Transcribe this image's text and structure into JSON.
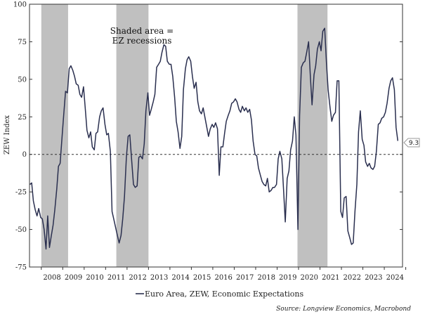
{
  "chart_data": {
    "type": "line",
    "ylabel": "ZEW Index",
    "ylim": [
      -75,
      100
    ],
    "yticks": [
      100,
      75,
      50,
      25,
      0,
      -25,
      -50,
      -75
    ],
    "xlim": [
      2007.45,
      2024.85
    ],
    "xticks": [
      {
        "label": "2008",
        "x": 2008.0
      },
      {
        "label": "2009",
        "x": 2009.0
      },
      {
        "label": "2010",
        "x": 2010.0
      },
      {
        "label": "2011",
        "x": 2011.0
      },
      {
        "label": "2012",
        "x": 2012.0
      },
      {
        "label": "2013",
        "x": 2013.0
      },
      {
        "label": "2014",
        "x": 2014.0
      },
      {
        "label": "2015",
        "x": 2015.0
      },
      {
        "label": "2016",
        "x": 2016.0
      },
      {
        "label": "2017",
        "x": 2017.0
      },
      {
        "label": "2018",
        "x": 2018.0
      },
      {
        "label": "2019",
        "x": 2019.0
      },
      {
        "label": "2020",
        "x": 2020.0
      },
      {
        "label": "2021",
        "x": 2021.0
      },
      {
        "label": "2022",
        "x": 2022.0
      },
      {
        "label": "2023",
        "x": 2023.0
      },
      {
        "label": "2024",
        "x": 2024.0
      }
    ],
    "recessions": [
      {
        "start": 2008.0,
        "end": 2009.25
      },
      {
        "start": 2011.5,
        "end": 2013.0
      },
      {
        "start": 2019.95,
        "end": 2021.35
      }
    ],
    "annotation": "Shaded area =\nEZ recessions",
    "end_label": "9.3",
    "series": [
      {
        "name": "Euro Area, ZEW, Economic Expectations",
        "color": "#2a2f4f",
        "x": [
          2007.47,
          2007.55,
          2007.63,
          2007.72,
          2007.8,
          2007.88,
          2007.97,
          2008.05,
          2008.13,
          2008.22,
          2008.3,
          2008.38,
          2008.47,
          2008.55,
          2008.63,
          2008.72,
          2008.8,
          2008.88,
          2008.97,
          2009.05,
          2009.13,
          2009.22,
          2009.3,
          2009.38,
          2009.47,
          2009.55,
          2009.63,
          2009.72,
          2009.8,
          2009.88,
          2009.97,
          2010.05,
          2010.13,
          2010.22,
          2010.3,
          2010.38,
          2010.47,
          2010.55,
          2010.63,
          2010.72,
          2010.8,
          2010.88,
          2010.97,
          2011.05,
          2011.13,
          2011.22,
          2011.3,
          2011.38,
          2011.47,
          2011.55,
          2011.63,
          2011.72,
          2011.8,
          2011.88,
          2011.97,
          2012.05,
          2012.13,
          2012.22,
          2012.3,
          2012.38,
          2012.47,
          2012.55,
          2012.63,
          2012.72,
          2012.8,
          2012.88,
          2012.97,
          2013.05,
          2013.13,
          2013.22,
          2013.3,
          2013.38,
          2013.47,
          2013.55,
          2013.63,
          2013.72,
          2013.8,
          2013.88,
          2013.97,
          2014.05,
          2014.13,
          2014.22,
          2014.3,
          2014.38,
          2014.47,
          2014.55,
          2014.63,
          2014.72,
          2014.8,
          2014.88,
          2014.97,
          2015.05,
          2015.13,
          2015.22,
          2015.3,
          2015.38,
          2015.47,
          2015.55,
          2015.63,
          2015.72,
          2015.8,
          2015.88,
          2015.97,
          2016.05,
          2016.13,
          2016.22,
          2016.3,
          2016.38,
          2016.47,
          2016.55,
          2016.63,
          2016.72,
          2016.8,
          2016.88,
          2016.97,
          2017.05,
          2017.13,
          2017.22,
          2017.3,
          2017.38,
          2017.47,
          2017.55,
          2017.63,
          2017.72,
          2017.8,
          2017.88,
          2017.97,
          2018.05,
          2018.13,
          2018.22,
          2018.3,
          2018.38,
          2018.47,
          2018.55,
          2018.63,
          2018.72,
          2018.8,
          2018.88,
          2018.97,
          2019.05,
          2019.13,
          2019.22,
          2019.3,
          2019.38,
          2019.47,
          2019.55,
          2019.63,
          2019.72,
          2019.8,
          2019.88,
          2019.97,
          2020.05,
          2020.13,
          2020.22,
          2020.3,
          2020.38,
          2020.47,
          2020.55,
          2020.63,
          2020.72,
          2020.8,
          2020.88,
          2020.97,
          2021.05,
          2021.13,
          2021.22,
          2021.3,
          2021.38,
          2021.47,
          2021.55,
          2021.63,
          2021.72,
          2021.8,
          2021.88,
          2021.97,
          2022.05,
          2022.13,
          2022.22,
          2022.3,
          2022.38,
          2022.47,
          2022.55,
          2022.63,
          2022.72,
          2022.8,
          2022.88,
          2022.97,
          2023.05,
          2023.13,
          2023.22,
          2023.3,
          2023.38,
          2023.47,
          2023.55,
          2023.63,
          2023.72,
          2023.8,
          2023.88,
          2023.97,
          2024.05,
          2024.13,
          2024.22,
          2024.3,
          2024.38,
          2024.47,
          2024.55,
          2024.63
        ],
        "y": [
          -20,
          -19,
          -31,
          -37,
          -41,
          -36,
          -42,
          -43,
          -50,
          -63,
          -41,
          -62,
          -54,
          -47,
          -37,
          -23,
          -8,
          -6,
          12,
          27,
          42,
          41,
          57,
          59,
          56,
          52,
          47,
          46,
          40,
          38,
          45,
          31,
          16,
          11,
          15,
          5,
          3,
          14,
          15,
          25,
          29,
          31,
          20,
          13,
          14,
          2,
          -38,
          -43,
          -49,
          -54,
          -59,
          -54,
          -43,
          -28,
          -2,
          12,
          13,
          -5,
          -20,
          -22,
          -21,
          -2,
          -1,
          -3,
          7,
          29,
          41,
          26,
          30,
          35,
          40,
          58,
          60,
          62,
          68,
          73,
          72,
          62,
          60,
          60,
          52,
          38,
          22,
          15,
          4,
          12,
          43,
          57,
          63,
          65,
          62,
          52,
          44,
          48,
          35,
          29,
          27,
          31,
          25,
          18,
          12,
          17,
          20,
          18,
          21,
          17,
          -14,
          5,
          5,
          14,
          22,
          26,
          29,
          34,
          35,
          37,
          35,
          30,
          28,
          32,
          29,
          31,
          28,
          30,
          23,
          9,
          0,
          -1,
          -9,
          -14,
          -18,
          -20,
          -21,
          -16,
          -25,
          -24,
          -22,
          -22,
          -20,
          -3,
          2,
          -3,
          -23,
          -45,
          -16,
          -11,
          3,
          9,
          25,
          13,
          -50,
          26,
          58,
          61,
          62,
          68,
          75,
          52,
          33,
          53,
          59,
          70,
          75,
          69,
          82,
          84,
          61,
          43,
          31,
          22,
          26,
          28,
          49,
          49,
          -38,
          -42,
          -29,
          -28,
          -51,
          -55,
          -60,
          -59,
          -38,
          -20,
          15,
          29,
          10,
          6,
          -5,
          -8,
          -6,
          -9,
          -10,
          -8,
          2,
          20,
          21,
          24,
          25,
          28,
          34,
          44,
          49,
          51,
          43,
          18,
          9
        ]
      }
    ],
    "legend": "Euro Area, ZEW, Economic Expectations",
    "source": "Source: Longview Economics, Macrobond"
  }
}
